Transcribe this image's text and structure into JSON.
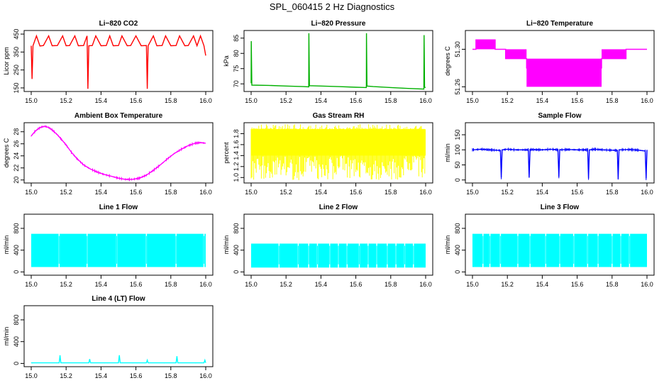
{
  "figure": {
    "title": "SPL_060415  2 Hz Diagnostics"
  },
  "chart_data": [
    {
      "type": "line",
      "title": "Li−820 CO2",
      "xlabel": "",
      "ylabel": "Licor ppm",
      "xlim": [
        15.0,
        16.0
      ],
      "ylim": [
        130,
        470
      ],
      "x_ticks": [
        "15.0",
        "15.2",
        "15.4",
        "15.6",
        "15.8",
        "16.0"
      ],
      "y_ticks": [
        {
          "value": 150,
          "label": "150"
        },
        {
          "value": 250,
          "label": "250"
        },
        {
          "value": 350,
          "label": "350"
        },
        {
          "value": 450,
          "label": "450"
        }
      ],
      "color": "#ff0000",
      "series": [
        {
          "x": [
            15.0,
            15.005,
            15.01,
            15.03,
            15.05,
            15.07,
            15.1,
            15.12,
            15.15,
            15.18,
            15.2,
            15.22,
            15.25,
            15.27,
            15.3,
            15.32,
            15.325,
            15.33,
            15.35,
            15.37,
            15.4,
            15.43,
            15.45,
            15.47,
            15.5,
            15.52,
            15.55,
            15.57,
            15.6,
            15.63,
            15.66,
            15.665,
            15.67,
            15.7,
            15.72,
            15.75,
            15.77,
            15.8,
            15.83,
            15.85,
            15.88,
            15.9,
            15.93,
            15.95,
            15.97,
            15.99,
            16.0
          ],
          "y": [
            385,
            200,
            385,
            440,
            384,
            386,
            440,
            385,
            386,
            440,
            385,
            386,
            440,
            385,
            386,
            440,
            145,
            385,
            386,
            440,
            385,
            386,
            440,
            385,
            386,
            440,
            385,
            386,
            440,
            385,
            386,
            145,
            385,
            440,
            385,
            386,
            440,
            385,
            386,
            440,
            385,
            386,
            440,
            385,
            440,
            385,
            330
          ]
        }
      ]
    },
    {
      "type": "line",
      "title": "Li−820 Pressure",
      "xlabel": "",
      "ylabel": "kPa",
      "xlim": [
        15.0,
        16.0
      ],
      "ylim": [
        67.5,
        87.5
      ],
      "x_ticks": [
        "15.0",
        "15.2",
        "15.4",
        "15.6",
        "15.8",
        "16.0"
      ],
      "y_ticks": [
        {
          "value": 70,
          "label": "70"
        },
        {
          "value": 75,
          "label": "75"
        },
        {
          "value": 80,
          "label": "80"
        },
        {
          "value": 85,
          "label": "85"
        }
      ],
      "color": "#00b000",
      "series": [
        {
          "x": [
            15.0,
            15.001,
            15.004,
            15.1,
            15.2,
            15.3,
            15.33,
            15.331,
            15.334,
            15.4,
            15.5,
            15.6,
            15.66,
            15.661,
            15.664,
            15.7,
            15.8,
            15.9,
            15.99,
            15.991,
            15.994,
            16.0
          ],
          "y": [
            70.2,
            84.0,
            69.6,
            69.5,
            69.3,
            69.1,
            69.0,
            86.6,
            69.4,
            69.3,
            69.1,
            68.9,
            68.8,
            86.6,
            69.3,
            69.1,
            68.8,
            68.5,
            68.3,
            86.0,
            68.9,
            68.8
          ]
        }
      ]
    },
    {
      "type": "line",
      "title": "Li−820 Temperature",
      "xlabel": "",
      "ylabel": "degrees C",
      "xlim": [
        15.0,
        16.0
      ],
      "ylim": [
        51.255,
        51.32
      ],
      "x_ticks": [
        "15.0",
        "15.2",
        "15.4",
        "15.6",
        "15.8",
        "16.0"
      ],
      "y_ticks": [
        {
          "value": 51.26,
          "label": "51.26"
        },
        {
          "value": 51.3,
          "label": "51.30"
        }
      ],
      "color": "#ff00ff",
      "series": [
        {
          "x": [
            15.0,
            15.02,
            15.02,
            15.13,
            15.13,
            15.19,
            15.19,
            15.31,
            15.31,
            15.74,
            15.74,
            15.88,
            15.88,
            16.0
          ],
          "y": [
            51.3,
            51.3,
            51.31,
            51.31,
            51.3,
            51.3,
            51.29,
            51.29,
            51.28,
            51.28,
            51.29,
            51.29,
            51.3,
            51.3
          ]
        }
      ],
      "bands": [
        {
          "x0": 15.02,
          "x1": 15.13,
          "y0": 51.3,
          "y1": 51.31
        },
        {
          "x0": 15.19,
          "x1": 15.31,
          "y0": 51.29,
          "y1": 51.3
        },
        {
          "x0": 15.31,
          "x1": 15.74,
          "y0": 51.26,
          "y1": 51.29
        },
        {
          "x0": 15.74,
          "x1": 15.88,
          "y0": 51.29,
          "y1": 51.3
        }
      ]
    },
    {
      "type": "line",
      "title": "Ambient Box Temperature",
      "xlabel": "",
      "ylabel": "degrees C",
      "xlim": [
        15.0,
        16.0
      ],
      "ylim": [
        19.5,
        29.5
      ],
      "x_ticks": [
        "15.0",
        "15.2",
        "15.4",
        "15.6",
        "15.8",
        "16.0"
      ],
      "y_ticks": [
        {
          "value": 20,
          "label": "20"
        },
        {
          "value": 22,
          "label": "22"
        },
        {
          "value": 24,
          "label": "24"
        },
        {
          "value": 26,
          "label": "26"
        },
        {
          "value": 28,
          "label": "28"
        }
      ],
      "color": "#ff00ff",
      "series": [
        {
          "x": [
            15.0,
            15.02,
            15.04,
            15.06,
            15.08,
            15.1,
            15.12,
            15.15,
            15.18,
            15.2,
            15.23,
            15.26,
            15.3,
            15.34,
            15.38,
            15.42,
            15.46,
            15.5,
            15.54,
            15.58,
            15.62,
            15.66,
            15.7,
            15.74,
            15.78,
            15.82,
            15.86,
            15.9,
            15.94,
            15.97,
            16.0
          ],
          "y": [
            27.3,
            28.0,
            28.5,
            28.8,
            28.9,
            28.7,
            28.3,
            27.5,
            26.5,
            25.8,
            24.6,
            23.6,
            22.5,
            21.8,
            21.3,
            20.9,
            20.6,
            20.3,
            20.1,
            20.1,
            20.3,
            20.8,
            21.6,
            22.5,
            23.5,
            24.4,
            25.1,
            25.7,
            26.1,
            26.2,
            26.1
          ]
        }
      ],
      "noise": 0.3
    },
    {
      "type": "area",
      "title": "Gas Stream RH",
      "xlabel": "",
      "ylabel": "percent",
      "xlim": [
        15.0,
        16.0
      ],
      "ylim": [
        0.9,
        2.0
      ],
      "x_ticks": [
        "15.0",
        "15.2",
        "15.4",
        "15.6",
        "15.8",
        "16.0"
      ],
      "y_ticks": [
        {
          "value": 1.0,
          "label": "1.0"
        },
        {
          "value": 1.2,
          "label": "1.2"
        },
        {
          "value": 1.4,
          "label": "1.4"
        },
        {
          "value": 1.6,
          "label": "1.6"
        },
        {
          "value": 1.8,
          "label": "1.8"
        }
      ],
      "color": "#ffff00",
      "band": {
        "low": 1.4,
        "high": 1.88,
        "min_spike": 0.95,
        "max_spike": 1.97
      }
    },
    {
      "type": "line",
      "title": "Sample Flow",
      "xlabel": "",
      "ylabel": "ml/min",
      "xlim": [
        15.0,
        16.0
      ],
      "ylim": [
        -10,
        190
      ],
      "x_ticks": [
        "15.0",
        "15.2",
        "15.4",
        "15.6",
        "15.8",
        "16.0"
      ],
      "y_ticks": [
        {
          "value": 0,
          "label": "0"
        },
        {
          "value": 50,
          "label": "50"
        },
        {
          "value": 100,
          "label": "100"
        },
        {
          "value": 150,
          "label": "150"
        }
      ],
      "color": "#0000ff",
      "series": [
        {
          "x": [
            15.0,
            15.05,
            15.1,
            15.16,
            15.165,
            15.17,
            15.2,
            15.25,
            15.32,
            15.325,
            15.33,
            15.4,
            15.45,
            15.49,
            15.495,
            15.5,
            15.55,
            15.6,
            15.66,
            15.665,
            15.67,
            15.7,
            15.75,
            15.83,
            15.835,
            15.84,
            15.9,
            15.95,
            15.99,
            15.995,
            16.0
          ],
          "y": [
            100,
            102,
            100,
            98,
            8,
            100,
            102,
            100,
            100,
            8,
            101,
            100,
            102,
            100,
            10,
            100,
            101,
            100,
            100,
            5,
            100,
            102,
            100,
            98,
            2,
            100,
            101,
            99,
            96,
            5,
            100
          ]
        }
      ],
      "noise": 6
    },
    {
      "type": "area",
      "title": "Line 1 Flow",
      "xlabel": "",
      "ylabel": "ml/min",
      "xlim": [
        15.0,
        16.0
      ],
      "ylim": [
        -60,
        1060
      ],
      "x_ticks": [
        "15.0",
        "15.2",
        "15.4",
        "15.6",
        "15.8",
        "16.0"
      ],
      "y_ticks": [
        {
          "value": 0,
          "label": "0"
        },
        {
          "value": 400,
          "label": "400"
        },
        {
          "value": 800,
          "label": "800"
        }
      ],
      "color": "#00ffff",
      "band": {
        "low": 90,
        "high": 700,
        "gaps": [
          15.16,
          15.32,
          15.49,
          15.66,
          15.83,
          15.99
        ]
      }
    },
    {
      "type": "area",
      "title": "Line 2 Flow",
      "xlabel": "",
      "ylabel": "ml/min",
      "xlim": [
        15.0,
        16.0
      ],
      "ylim": [
        -60,
        1060
      ],
      "x_ticks": [
        "15.0",
        "15.2",
        "15.4",
        "15.6",
        "15.8",
        "16.0"
      ],
      "y_ticks": [
        {
          "value": 0,
          "label": "0"
        },
        {
          "value": 400,
          "label": "400"
        },
        {
          "value": 800,
          "label": "800"
        }
      ],
      "color": "#00ffff",
      "band": {
        "low": 80,
        "high": 520,
        "gaps": [
          15.16,
          15.27,
          15.33,
          15.38,
          15.45,
          15.5,
          15.55,
          15.62,
          15.67,
          15.72,
          15.78,
          15.83,
          15.88,
          15.93
        ]
      }
    },
    {
      "type": "area",
      "title": "Line 3 Flow",
      "xlabel": "",
      "ylabel": "ml/min",
      "xlim": [
        15.0,
        16.0
      ],
      "ylim": [
        -60,
        1060
      ],
      "x_ticks": [
        "15.0",
        "15.2",
        "15.4",
        "15.6",
        "15.8",
        "16.0"
      ],
      "y_ticks": [
        {
          "value": 0,
          "label": "0"
        },
        {
          "value": 400,
          "label": "400"
        },
        {
          "value": 800,
          "label": "800"
        }
      ],
      "color": "#00ffff",
      "band": {
        "low": 90,
        "high": 700,
        "gaps": [
          15.06,
          15.1,
          15.16,
          15.26,
          15.33,
          15.42,
          15.5,
          15.58,
          15.66,
          15.72,
          15.8,
          15.85,
          15.9
        ]
      }
    },
    {
      "type": "line",
      "title": "Line 4 (LT) Flow",
      "xlabel": "",
      "ylabel": "ml/min",
      "xlim": [
        15.0,
        16.0
      ],
      "ylim": [
        -60,
        1060
      ],
      "x_ticks": [
        "15.0",
        "15.2",
        "15.4",
        "15.6",
        "15.8",
        "16.0"
      ],
      "y_ticks": [
        {
          "value": 0,
          "label": "0"
        },
        {
          "value": 400,
          "label": "400"
        },
        {
          "value": 800,
          "label": "800"
        }
      ],
      "color": "#00ffff",
      "series": [
        {
          "x": [
            15.0,
            15.16,
            15.165,
            15.17,
            15.33,
            15.335,
            15.34,
            15.5,
            15.505,
            15.51,
            15.66,
            15.665,
            15.67,
            15.83,
            15.835,
            15.84,
            15.99,
            15.995,
            16.0
          ],
          "y": [
            10,
            10,
            150,
            10,
            10,
            80,
            10,
            10,
            150,
            10,
            10,
            60,
            10,
            10,
            130,
            10,
            10,
            60,
            10
          ]
        }
      ],
      "noise": 6
    }
  ]
}
